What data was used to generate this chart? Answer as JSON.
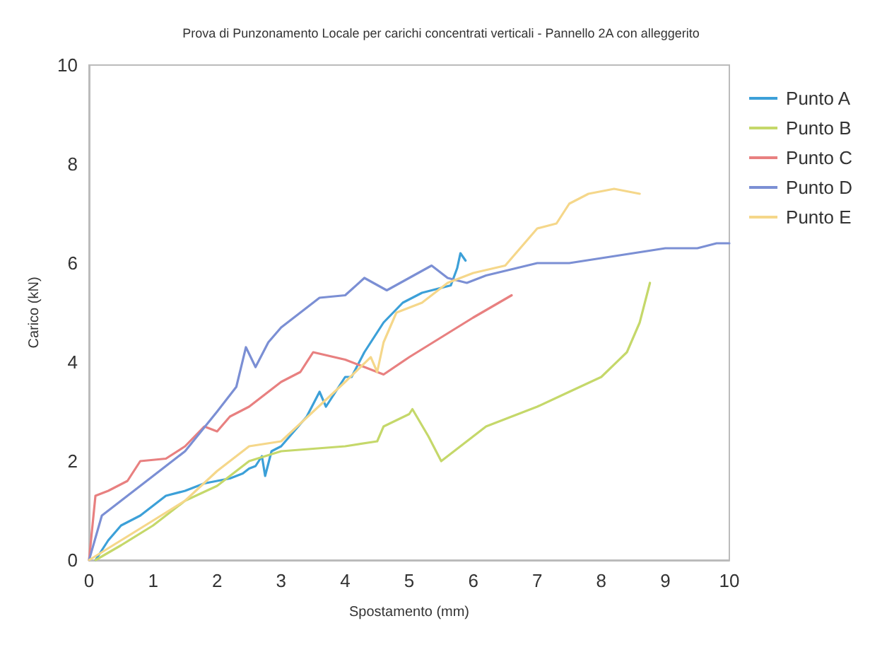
{
  "chart_data": {
    "type": "line",
    "title": "Prova di Punzonamento Locale per carichi concentrati verticali - Pannello 2A con alleggerito",
    "xlabel": "Spostamento (mm)",
    "ylabel": "Carico (kN)",
    "xlim": [
      0,
      10
    ],
    "xticks": [
      0,
      1,
      2,
      3,
      4,
      5,
      6,
      7,
      8,
      9,
      10
    ],
    "ylim": [
      0,
      10
    ],
    "yticks": [
      0,
      2,
      4,
      6,
      8,
      10
    ],
    "grid": false,
    "legend": "right",
    "marker": "none",
    "line_style": "solid",
    "series": [
      {
        "name": "Punto A",
        "color": "#3ca0d8",
        "x": [
          0.1,
          0.3,
          0.5,
          0.8,
          1,
          1.2,
          1.5,
          1.8,
          2,
          2.2,
          2.4,
          2.5,
          2.6,
          2.7,
          2.75,
          2.85,
          3,
          3.2,
          3.4,
          3.6,
          3.7,
          3.8,
          4,
          4.1,
          4.3,
          4.6,
          4.9,
          5.2,
          5.5,
          5.65,
          5.75,
          5.8,
          5.88
        ],
        "values": [
          0,
          0.4,
          0.7,
          0.9,
          1.1,
          1.3,
          1.4,
          1.55,
          1.6,
          1.65,
          1.75,
          1.85,
          1.9,
          2.1,
          1.7,
          2.2,
          2.3,
          2.6,
          2.9,
          3.4,
          3.1,
          3.3,
          3.7,
          3.7,
          4.2,
          4.8,
          5.2,
          5.4,
          5.5,
          5.55,
          5.9,
          6.2,
          6.05
        ]
      },
      {
        "name": "Punto B",
        "color": "#c5d86a",
        "x": [
          0.1,
          0.5,
          1,
          1.5,
          2,
          2.5,
          3,
          3.5,
          4,
          4.5,
          4.6,
          5,
          5.05,
          5.3,
          5.5,
          5.8,
          6.2,
          7,
          7.5,
          8,
          8.4,
          8.6,
          8.7,
          8.76
        ],
        "values": [
          0,
          0.3,
          0.7,
          1.2,
          1.5,
          2,
          2.2,
          2.25,
          2.3,
          2.4,
          2.7,
          2.95,
          3.05,
          2.5,
          2,
          2.3,
          2.7,
          3.1,
          3.4,
          3.7,
          4.2,
          4.8,
          5.3,
          5.6
        ]
      },
      {
        "name": "Punto C",
        "color": "#e88080",
        "x": [
          0,
          0.1,
          0.3,
          0.6,
          0.8,
          1.2,
          1.5,
          1.8,
          2,
          2.2,
          2.5,
          3,
          3.3,
          3.5,
          4,
          4.5,
          4.6,
          5,
          5.5,
          6,
          6.6
        ],
        "values": [
          0,
          1.3,
          1.4,
          1.6,
          2,
          2.05,
          2.3,
          2.7,
          2.6,
          2.9,
          3.1,
          3.6,
          3.8,
          4.2,
          4.05,
          3.8,
          3.75,
          4.1,
          4.5,
          4.9,
          5.35
        ]
      },
      {
        "name": "Punto D",
        "color": "#7b8fd4",
        "x": [
          0,
          0.2,
          0.5,
          1,
          1.5,
          2,
          2.3,
          2.45,
          2.6,
          2.8,
          3,
          3.3,
          3.6,
          4,
          4.3,
          4.65,
          5,
          5.35,
          5.6,
          5.9,
          6.2,
          7,
          7.5,
          8,
          8.5,
          9,
          9.5,
          9.8,
          10
        ],
        "values": [
          0,
          0.9,
          1.2,
          1.7,
          2.2,
          3,
          3.5,
          4.3,
          3.9,
          4.4,
          4.7,
          5,
          5.3,
          5.35,
          5.7,
          5.45,
          5.7,
          5.95,
          5.7,
          5.6,
          5.75,
          6,
          6,
          6.1,
          6.2,
          6.3,
          6.3,
          6.4,
          6.4
        ]
      },
      {
        "name": "Punto E",
        "color": "#f5d78a",
        "x": [
          0,
          0.5,
          1,
          1.5,
          2,
          2.5,
          3,
          3.5,
          4,
          4.4,
          4.5,
          4.6,
          4.8,
          5.2,
          5.6,
          6,
          6.5,
          7,
          7.3,
          7.5,
          7.8,
          8.2,
          8.6
        ],
        "values": [
          0,
          0.4,
          0.8,
          1.2,
          1.8,
          2.3,
          2.4,
          3,
          3.6,
          4.1,
          3.8,
          4.4,
          5,
          5.2,
          5.6,
          5.8,
          5.95,
          6.7,
          6.8,
          7.2,
          7.4,
          7.5,
          7.4
        ]
      }
    ]
  }
}
